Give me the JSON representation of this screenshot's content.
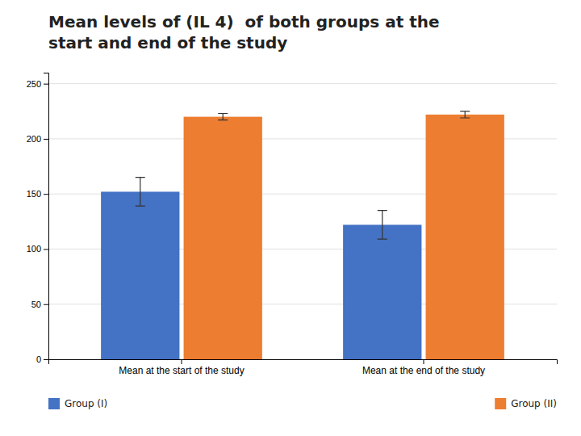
{
  "chart_data": {
    "type": "bar",
    "title": "Mean levels of (IL 4)  of both groups at the\nstart and end of the study",
    "categories": [
      "Mean at the start of the study",
      "Mean at the end of the study"
    ],
    "series": [
      {
        "name": "Group (I)",
        "color": "#4472C4",
        "values": [
          152,
          122
        ],
        "errors": [
          13,
          13
        ]
      },
      {
        "name": "Group (II)",
        "color": "#ED7D31",
        "values": [
          220,
          222
        ],
        "errors": [
          3,
          3
        ]
      }
    ],
    "ylim": [
      0,
      260
    ],
    "yticks": [
      0,
      50,
      100,
      150,
      200,
      250
    ],
    "grid": true,
    "legend": "bottom"
  }
}
